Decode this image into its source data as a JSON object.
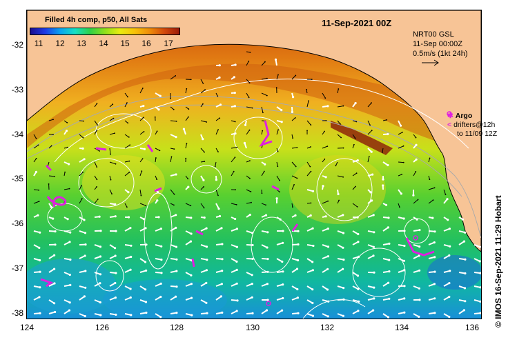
{
  "header": {
    "colorbar_title": "Filled 4h comp, p50, All Sats",
    "date_title": "11-Sep-2021 00Z"
  },
  "colorbar": {
    "ticks": [
      "11",
      "12",
      "13",
      "14",
      "15",
      "16",
      "17"
    ],
    "colors": [
      "#1a0d8f",
      "#1e3ae6",
      "#0aa3f0",
      "#16e0c4",
      "#2fd048",
      "#8fe01a",
      "#e8ec10",
      "#f7c20a",
      "#ee8c08",
      "#d2480a",
      "#9a1a0a"
    ]
  },
  "axes": {
    "y_labels": [
      "-32",
      "-33",
      "-34",
      "-35",
      "-36",
      "-37",
      "-38"
    ],
    "x_labels": [
      "124",
      "126",
      "128",
      "130",
      "132",
      "134",
      "136"
    ]
  },
  "info": {
    "line1": "NRT00 GSL",
    "line2": "11-Sep 00:00Z",
    "line3": "0.5m/s (1kt 24h)"
  },
  "legend": {
    "argo_label": "Argo",
    "drifters_line1": "drifters@12h",
    "drifters_line2": "to 11/09 12Z",
    "argo_color": "#e020e0"
  },
  "credit": "©  IMOS 16-Sep-2021 11:29 Hobart",
  "colors": {
    "land": "#f7c496",
    "coast": "#000000",
    "contour": "#ffffff",
    "isobath": "#aaaaaa"
  }
}
